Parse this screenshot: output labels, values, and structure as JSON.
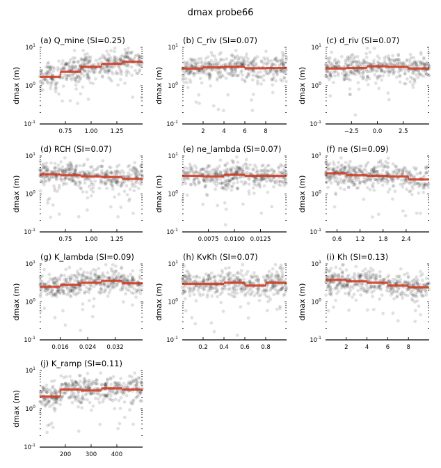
{
  "chart_data": {
    "type": "scatter",
    "title": "dmax probe66",
    "ylabel": "dmax (m)",
    "yscale": "log",
    "ylim": [
      0.1,
      10
    ],
    "ytick_labels": [
      "10^-1",
      "10^0",
      "10^1"
    ],
    "series_style": {
      "points_color": "#000000",
      "points_alpha": 0.12,
      "step_line_color": "#d23c24"
    },
    "panels": [
      {
        "label": "(a) Q_mine (SI=0.25)",
        "param": "Q_mine",
        "si": 0.25,
        "xlim": [
          0.5,
          1.5
        ],
        "xticks": [
          0.75,
          1.0,
          1.25
        ],
        "xtick_labels": [
          "0.75",
          "1.00",
          "1.25"
        ],
        "bin_edges": [
          0.5,
          0.7,
          0.9,
          1.1,
          1.3,
          1.5
        ],
        "bin_means": [
          1.7,
          2.3,
          3.1,
          3.7,
          4.2
        ],
        "trend": 0.9,
        "scatter_center": 2.8
      },
      {
        "label": "(b) C_riv (SI=0.07)",
        "param": "C_riv",
        "si": 0.07,
        "xlim": [
          0,
          10
        ],
        "xticks": [
          2,
          4,
          6,
          8
        ],
        "xtick_labels": [
          "2",
          "4",
          "6",
          "8"
        ],
        "bin_edges": [
          0,
          2,
          4,
          6,
          8,
          10
        ],
        "bin_means": [
          2.8,
          3.0,
          3.1,
          2.85,
          2.9
        ],
        "trend": 0,
        "scatter_center": 2.9
      },
      {
        "label": "(c) d_riv (SI=0.07)",
        "param": "d_riv",
        "si": 0.07,
        "xlim": [
          -5,
          5
        ],
        "xticks": [
          -2.5,
          0.0,
          2.5
        ],
        "xtick_labels": [
          "−2.5",
          "0.0",
          "2.5"
        ],
        "bin_edges": [
          -5,
          -3,
          -1,
          1,
          3,
          5
        ],
        "bin_means": [
          2.8,
          2.9,
          3.2,
          3.1,
          2.8
        ],
        "trend": 0,
        "scatter_center": 2.9
      },
      {
        "label": "(d) RCH (SI=0.07)",
        "param": "RCH",
        "si": 0.07,
        "xlim": [
          0.5,
          1.5
        ],
        "xticks": [
          0.75,
          1.0,
          1.25
        ],
        "xtick_labels": [
          "0.75",
          "1.00",
          "1.25"
        ],
        "bin_edges": [
          0.5,
          0.7,
          0.9,
          1.1,
          1.3,
          1.5
        ],
        "bin_means": [
          3.3,
          3.1,
          2.9,
          2.8,
          2.5
        ],
        "trend": -0.2,
        "scatter_center": 2.9
      },
      {
        "label": "(e) ne_lambda (SI=0.07)",
        "param": "ne_lambda",
        "si": 0.07,
        "xlim": [
          0.005,
          0.015
        ],
        "xticks": [
          0.0075,
          0.01,
          0.0125
        ],
        "xtick_labels": [
          "0.0075",
          "0.0100",
          "0.0125"
        ],
        "bin_edges": [
          0.005,
          0.007,
          0.009,
          0.011,
          0.013,
          0.015
        ],
        "bin_means": [
          3.0,
          2.9,
          3.2,
          3.0,
          3.0
        ],
        "trend": 0,
        "scatter_center": 3.0
      },
      {
        "label": "(f) ne (SI=0.09)",
        "param": "ne",
        "si": 0.09,
        "xlim": [
          0.3,
          3.0
        ],
        "xticks": [
          0.6,
          1.2,
          1.8,
          2.4
        ],
        "xtick_labels": [
          "0.6",
          "1.2",
          "1.8",
          "2.4"
        ],
        "bin_edges": [
          0.3,
          0.84,
          1.38,
          1.92,
          2.46,
          3.0
        ],
        "bin_means": [
          3.5,
          3.1,
          3.0,
          2.9,
          2.4
        ],
        "trend": -0.3,
        "scatter_center": 2.9
      },
      {
        "label": "(g) K_lambda (SI=0.09)",
        "param": "K_lambda",
        "si": 0.09,
        "xlim": [
          0.01,
          0.04
        ],
        "xticks": [
          0.016,
          0.024,
          0.032
        ],
        "xtick_labels": [
          "0.016",
          "0.024",
          "0.032"
        ],
        "bin_edges": [
          0.01,
          0.016,
          0.022,
          0.028,
          0.034,
          0.04
        ],
        "bin_means": [
          2.5,
          2.8,
          3.2,
          3.6,
          3.1
        ],
        "trend": 0.25,
        "scatter_center": 3.0
      },
      {
        "label": "(h) KvKh (SI=0.07)",
        "param": "KvKh",
        "si": 0.07,
        "xlim": [
          0,
          1
        ],
        "xticks": [
          0.2,
          0.4,
          0.6,
          0.8
        ],
        "xtick_labels": [
          "0.2",
          "0.4",
          "0.6",
          "0.8"
        ],
        "bin_edges": [
          0,
          0.2,
          0.4,
          0.6,
          0.8,
          1.0
        ],
        "bin_means": [
          3.0,
          3.0,
          3.2,
          2.7,
          3.2
        ],
        "trend": 0,
        "scatter_center": 3.0
      },
      {
        "label": "(i) Kh (SI=0.13)",
        "param": "Kh",
        "si": 0.13,
        "xlim": [
          0,
          10
        ],
        "xticks": [
          2,
          4,
          6,
          8
        ],
        "xtick_labels": [
          "2",
          "4",
          "6",
          "8"
        ],
        "bin_edges": [
          0,
          2,
          4,
          6,
          8,
          10
        ],
        "bin_means": [
          3.8,
          3.5,
          3.2,
          2.7,
          2.4
        ],
        "trend": -0.4,
        "scatter_center": 3.0
      },
      {
        "label": "(j) K_ramp (SI=0.11)",
        "param": "K_ramp",
        "si": 0.11,
        "xlim": [
          100,
          500
        ],
        "xticks": [
          200,
          300,
          400
        ],
        "xtick_labels": [
          "200",
          "300",
          "400"
        ],
        "bin_edges": [
          100,
          180,
          260,
          340,
          420,
          500
        ],
        "bin_means": [
          2.1,
          3.2,
          3.0,
          3.4,
          3.2
        ],
        "trend": 0.3,
        "scatter_center": 2.9
      }
    ]
  }
}
